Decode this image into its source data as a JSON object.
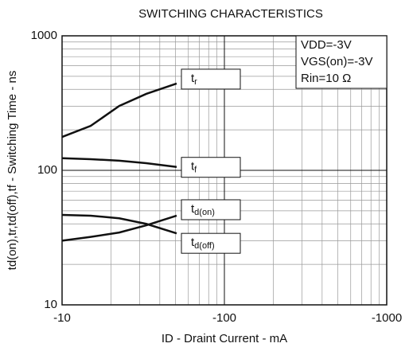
{
  "chart_data": {
    "type": "line",
    "title": "SWITCHING CHARACTERISTICS",
    "x_label": "ID - Draint Current - mA",
    "y_label": "td(on),tr,td(off),tf - Switching Time - ns",
    "annotations": [
      "VDD=-3V",
      "VGS(on)=-3V",
      "Rin=10 Ω"
    ],
    "x": [
      -10,
      -15,
      -22.5,
      -33,
      -50.8
    ],
    "series": [
      {
        "name": "tr",
        "color": "#111111",
        "values": [
          177,
          214,
          301,
          370,
          442
        ]
      },
      {
        "name": "tf",
        "color": "#111111",
        "values": [
          123,
          121,
          118,
          113,
          106
        ]
      },
      {
        "name": "td(on)",
        "color": "#111111",
        "values": [
          30,
          32,
          34.5,
          39,
          46
        ]
      },
      {
        "name": "td(off)",
        "color": "#111111",
        "values": [
          46.6,
          46,
          44,
          40,
          34
        ]
      }
    ],
    "xlim": [
      -10,
      -1000
    ],
    "xticks": [
      -10,
      -100,
      -1000
    ],
    "xscale": "log",
    "ylim": [
      10,
      1000
    ],
    "yticks": [
      10,
      100,
      1000
    ],
    "yscale": "log",
    "grid": true
  }
}
